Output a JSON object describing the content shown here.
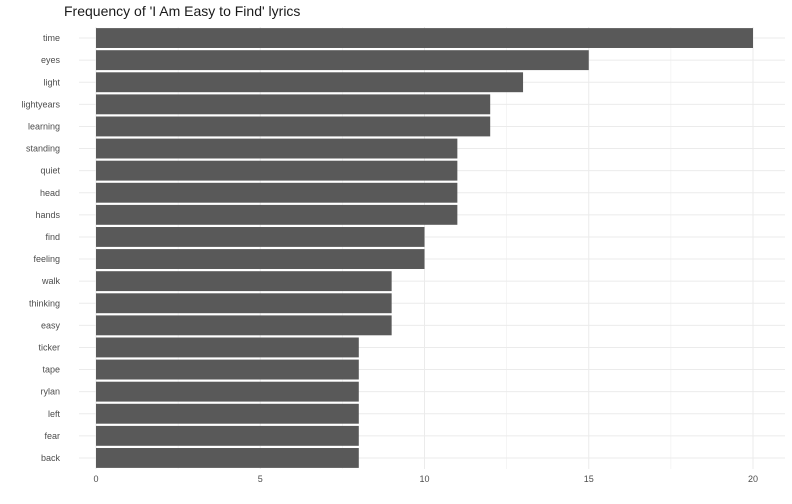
{
  "chart_data": {
    "type": "bar",
    "orientation": "horizontal",
    "title": "Frequency of 'I Am Easy to Find' lyrics",
    "xlabel": "",
    "ylabel": "",
    "categories": [
      "time",
      "eyes",
      "light",
      "lightyears",
      "learning",
      "standing",
      "quiet",
      "head",
      "hands",
      "find",
      "feeling",
      "walk",
      "thinking",
      "easy",
      "ticker",
      "tape",
      "rylan",
      "left",
      "fear",
      "back"
    ],
    "values": [
      20,
      15,
      13,
      12,
      12,
      11,
      11,
      11,
      11,
      10,
      10,
      9,
      9,
      9,
      8,
      8,
      8,
      8,
      8,
      8
    ],
    "xlim": [
      0,
      21
    ],
    "xticks": [
      "0",
      "5",
      "10",
      "15",
      "20"
    ],
    "grid": true,
    "legend": "none",
    "colors": {
      "bar": "#595959",
      "grid": "#ebebeb",
      "background": "#ffffff"
    }
  }
}
